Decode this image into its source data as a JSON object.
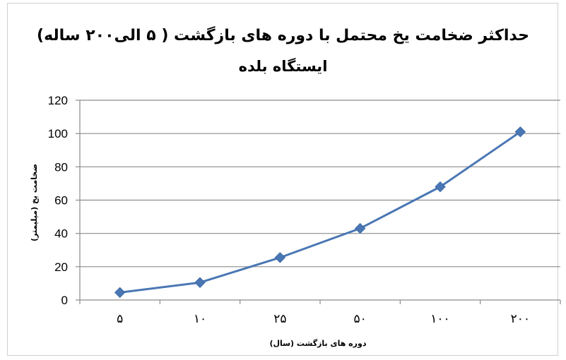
{
  "chart_data": {
    "type": "line",
    "title": "حداکثر ضخامت یخ  محتمل با دوره های بازگشت  ( ۵ الی۲۰۰ ساله)",
    "subtitle": "ایستگاه بلده",
    "xlabel": "دوره های بازگشت (سال)",
    "ylabel": "ضخامت یخ (میلیمتر)",
    "categories": [
      "۵",
      "۱۰",
      "۲۵",
      "۵۰",
      "۱۰۰",
      "۲۰۰"
    ],
    "series": [
      {
        "values": [
          4.5,
          10.5,
          25.5,
          43,
          68,
          101
        ]
      }
    ],
    "ylim": [
      0,
      120
    ],
    "yticks": [
      "0",
      "20",
      "40",
      "60",
      "80",
      "100",
      "120"
    ],
    "ytick_values": [
      0,
      20,
      40,
      60,
      80,
      100,
      120
    ],
    "grid": true,
    "line_color": "#4a77b4",
    "grid_color": "#8c8c8c"
  }
}
